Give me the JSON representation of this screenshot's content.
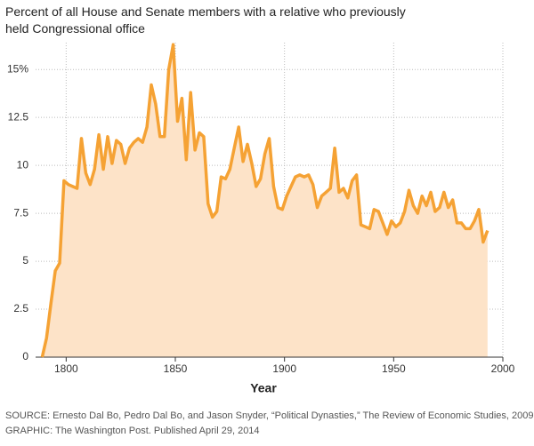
{
  "chart_data": {
    "type": "area",
    "title": "Percent of all House and Senate members with a relative who previously held Congressional office",
    "x_label": "Year",
    "source": "SOURCE: Ernesto Dal Bo, Pedro Dal Bo, and Jason Snyder, “Political Dynasties,” The Review of Economic Studies, 2009",
    "credit": "GRAPHIC: The Washington Post. Published April 29, 2014",
    "x": [
      1789,
      1791,
      1793,
      1795,
      1797,
      1799,
      1801,
      1803,
      1805,
      1807,
      1809,
      1811,
      1813,
      1815,
      1817,
      1819,
      1821,
      1823,
      1825,
      1827,
      1829,
      1831,
      1833,
      1835,
      1837,
      1839,
      1841,
      1843,
      1845,
      1847,
      1849,
      1851,
      1853,
      1855,
      1857,
      1859,
      1861,
      1863,
      1865,
      1867,
      1869,
      1871,
      1873,
      1875,
      1877,
      1879,
      1881,
      1883,
      1885,
      1887,
      1889,
      1891,
      1893,
      1895,
      1897,
      1899,
      1901,
      1903,
      1905,
      1907,
      1909,
      1911,
      1913,
      1915,
      1917,
      1919,
      1921,
      1923,
      1925,
      1927,
      1929,
      1931,
      1933,
      1935,
      1937,
      1939,
      1941,
      1943,
      1945,
      1947,
      1949,
      1951,
      1953,
      1955,
      1957,
      1959,
      1961,
      1963,
      1965,
      1967,
      1969,
      1971,
      1973,
      1975,
      1977,
      1979,
      1981,
      1983,
      1985,
      1987,
      1989,
      1991,
      1993
    ],
    "values": [
      0,
      1,
      2.8,
      4.5,
      4.9,
      9.2,
      9.0,
      8.9,
      8.8,
      11.4,
      9.6,
      9.0,
      9.8,
      11.6,
      9.8,
      11.5,
      10.1,
      11.3,
      11.1,
      10.1,
      10.9,
      11.2,
      11.4,
      11.2,
      12.0,
      14.2,
      13.2,
      11.5,
      11.5,
      15.0,
      16.3,
      12.3,
      13.5,
      10.3,
      13.8,
      10.8,
      11.7,
      11.5,
      8.0,
      7.3,
      7.6,
      9.4,
      9.3,
      9.8,
      10.9,
      12.0,
      10.2,
      11.1,
      10.1,
      8.9,
      9.3,
      10.6,
      11.4,
      8.9,
      7.8,
      7.7,
      8.4,
      8.9,
      9.4,
      9.5,
      9.4,
      9.5,
      9.0,
      7.8,
      8.4,
      8.6,
      8.8,
      10.9,
      8.6,
      8.8,
      8.3,
      9.2,
      9.5,
      6.9,
      6.8,
      6.7,
      7.7,
      7.6,
      7.0,
      6.4,
      7.1,
      6.8,
      7.0,
      7.6,
      8.7,
      7.9,
      7.5,
      8.4,
      7.9,
      8.6,
      7.6,
      7.8,
      8.6,
      7.8,
      8.2,
      7.0,
      7.0,
      6.7,
      6.7,
      7.1,
      7.7,
      6.0,
      6.6
    ],
    "color": "#f5a234",
    "fill": "#fde3c8",
    "xlim": [
      1786,
      2000
    ],
    "xticks": [
      1800,
      1850,
      1900,
      1950,
      2000
    ],
    "ylim": [
      0,
      16.4
    ],
    "yticks": [
      0,
      2.5,
      5,
      7.5,
      10,
      12.5,
      {
        "value": 15,
        "label": "15%"
      }
    ],
    "grid": true
  }
}
